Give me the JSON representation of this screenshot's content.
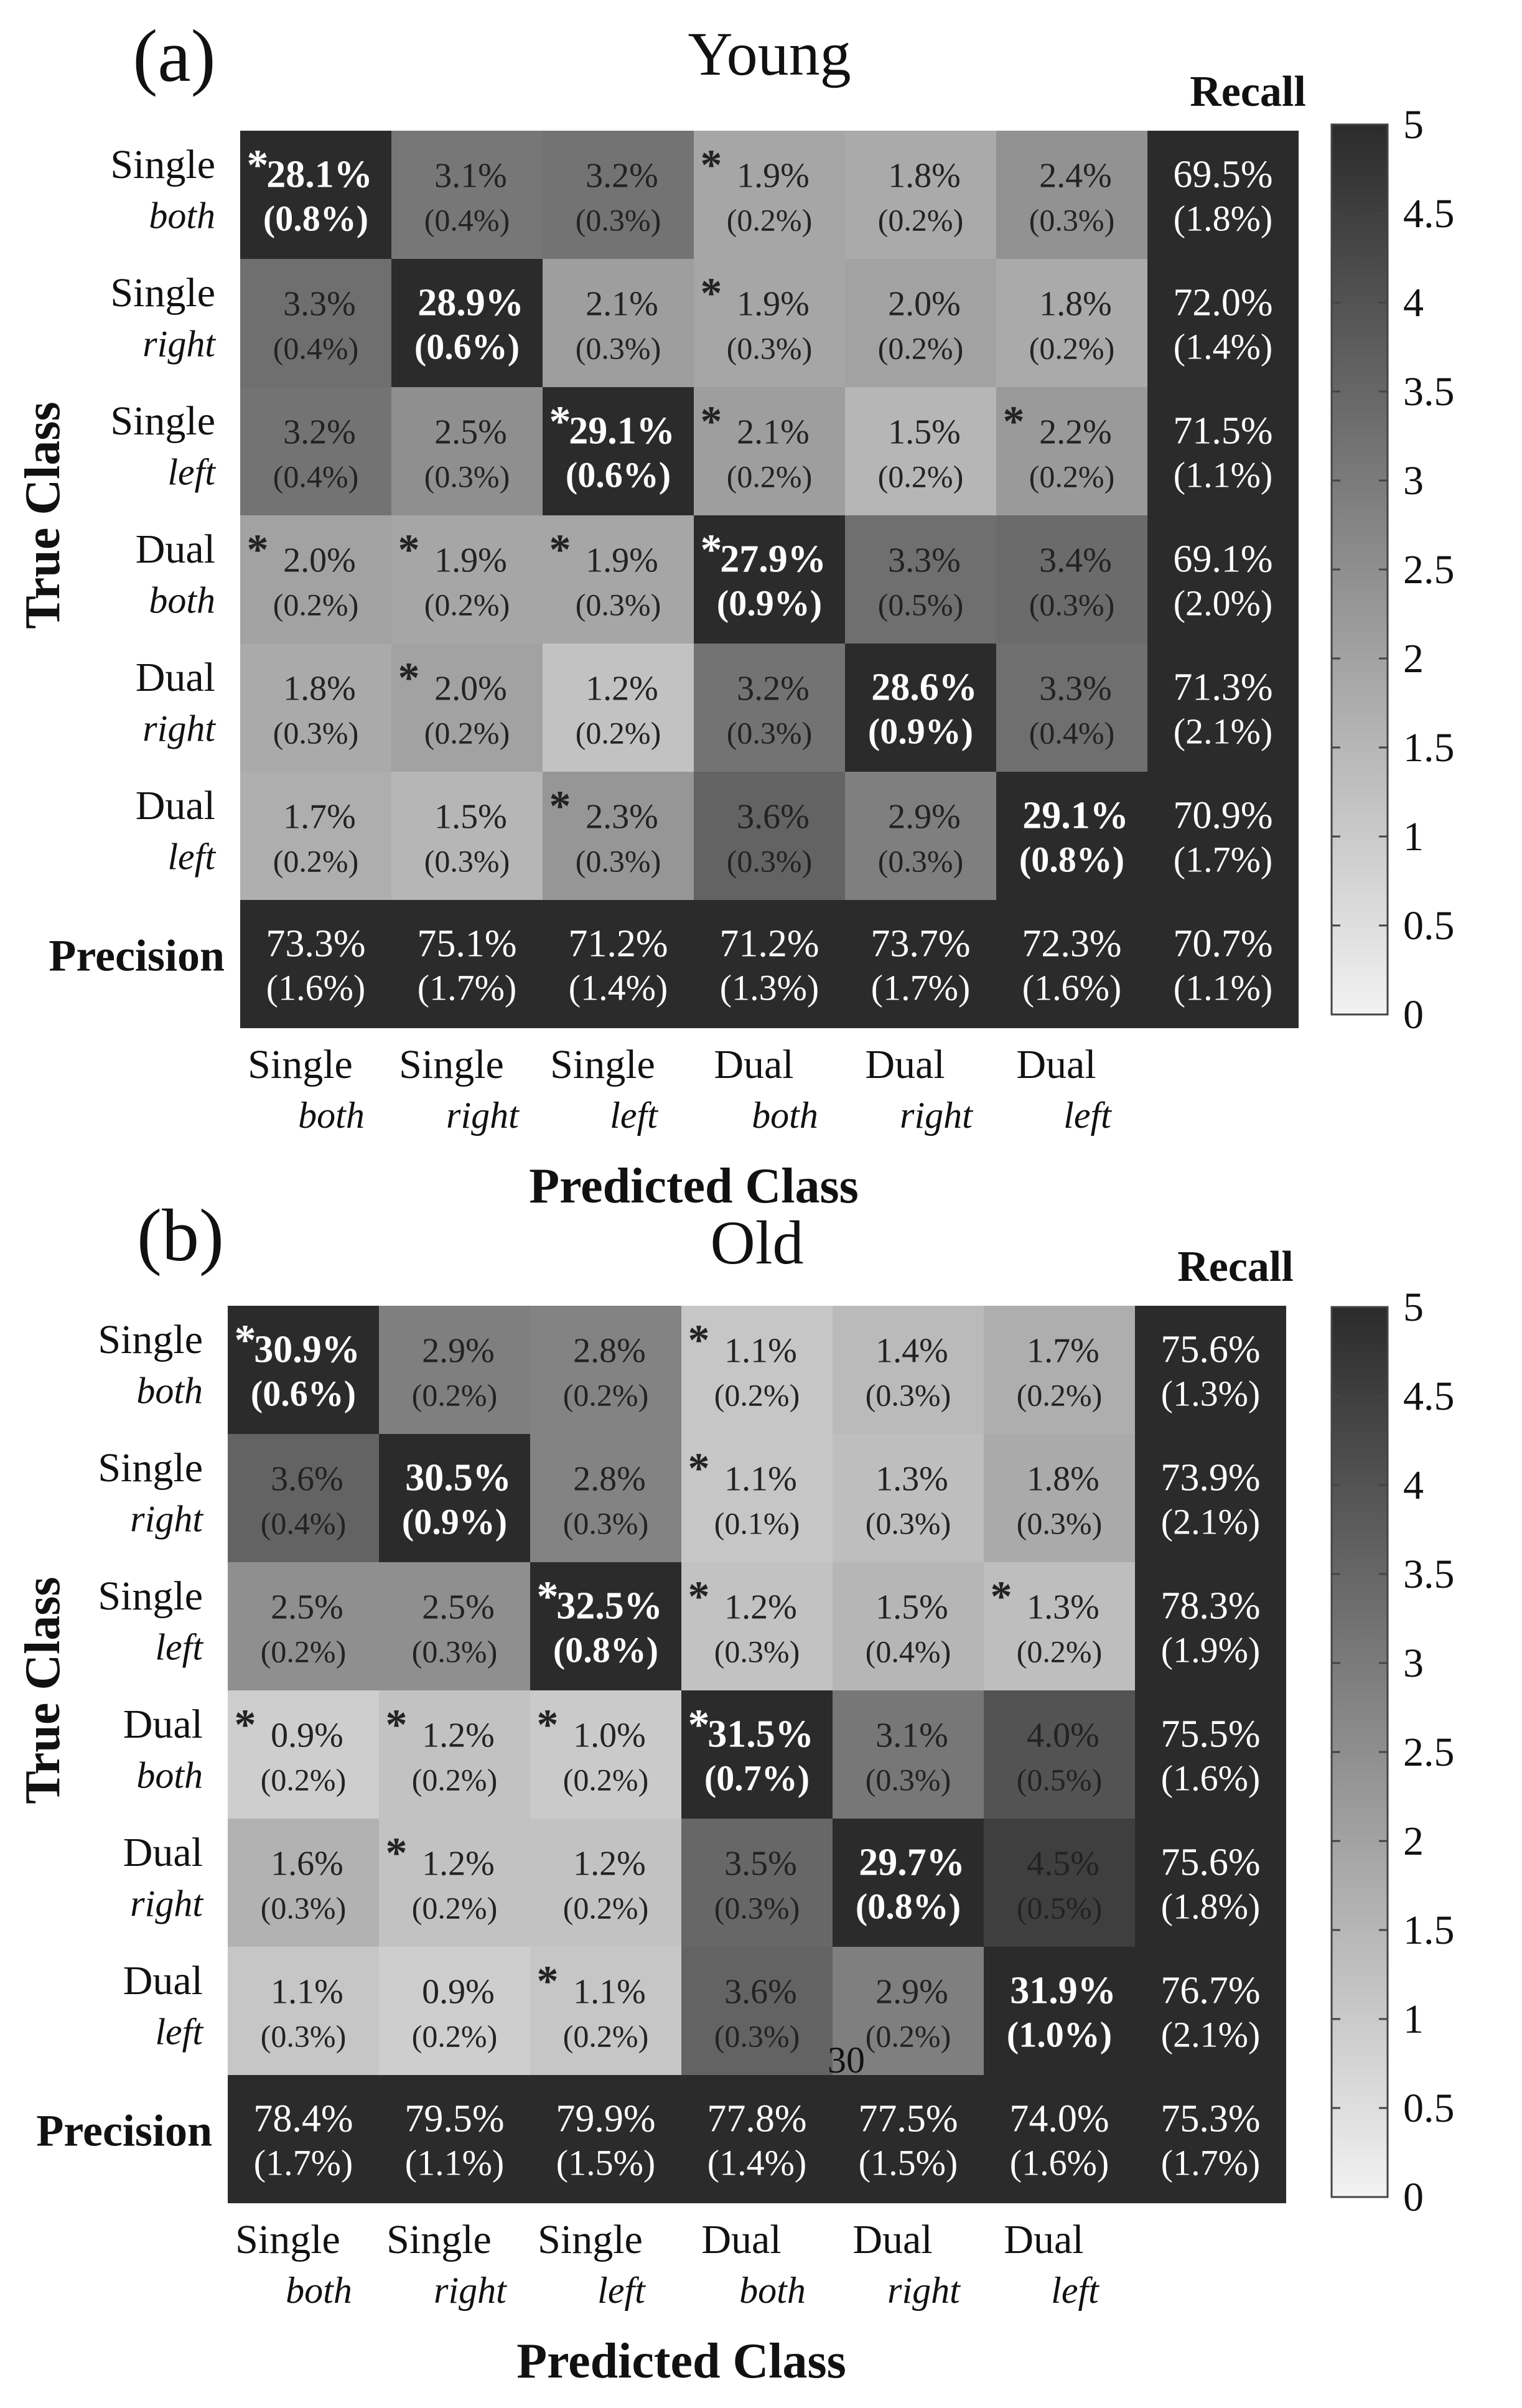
{
  "chart_data": [
    {
      "type": "heatmap",
      "panel": "(a)",
      "title": "Young",
      "xlabel": "Predicted Class",
      "ylabel": "True Class",
      "recall_label": "Recall",
      "precision_label": "Precision",
      "rows": [
        {
          "top": "Single",
          "bottom": "both"
        },
        {
          "top": "Single",
          "bottom": "right"
        },
        {
          "top": "Single",
          "bottom": "left"
        },
        {
          "top": "Dual",
          "bottom": "both"
        },
        {
          "top": "Dual",
          "bottom": "right"
        },
        {
          "top": "Dual",
          "bottom": "left"
        }
      ],
      "cols": [
        {
          "top": "Single",
          "bottom": "both"
        },
        {
          "top": "Single",
          "bottom": "right"
        },
        {
          "top": "Single",
          "bottom": "left"
        },
        {
          "top": "Dual",
          "bottom": "both"
        },
        {
          "top": "Dual",
          "bottom": "right"
        },
        {
          "top": "Dual",
          "bottom": "left"
        }
      ],
      "cells": [
        [
          [
            "28.1%",
            "(0.8%)",
            true
          ],
          [
            "3.1%",
            "(0.4%)",
            false
          ],
          [
            "3.2%",
            "(0.3%)",
            false
          ],
          [
            "1.9%",
            "(0.2%)",
            true
          ],
          [
            "1.8%",
            "(0.2%)",
            false
          ],
          [
            "2.4%",
            "(0.3%)",
            false
          ]
        ],
        [
          [
            "3.3%",
            "(0.4%)",
            false
          ],
          [
            "28.9%",
            "(0.6%)",
            false
          ],
          [
            "2.1%",
            "(0.3%)",
            false
          ],
          [
            "1.9%",
            "(0.3%)",
            true
          ],
          [
            "2.0%",
            "(0.2%)",
            false
          ],
          [
            "1.8%",
            "(0.2%)",
            false
          ]
        ],
        [
          [
            "3.2%",
            "(0.4%)",
            false
          ],
          [
            "2.5%",
            "(0.3%)",
            false
          ],
          [
            "29.1%",
            "(0.6%)",
            true
          ],
          [
            "2.1%",
            "(0.2%)",
            true
          ],
          [
            "1.5%",
            "(0.2%)",
            false
          ],
          [
            "2.2%",
            "(0.2%)",
            true
          ]
        ],
        [
          [
            "2.0%",
            "(0.2%)",
            true
          ],
          [
            "1.9%",
            "(0.2%)",
            true
          ],
          [
            "1.9%",
            "(0.3%)",
            true
          ],
          [
            "27.9%",
            "(0.9%)",
            true
          ],
          [
            "3.3%",
            "(0.5%)",
            false
          ],
          [
            "3.4%",
            "(0.3%)",
            false
          ]
        ],
        [
          [
            "1.8%",
            "(0.3%)",
            false
          ],
          [
            "2.0%",
            "(0.2%)",
            true
          ],
          [
            "1.2%",
            "(0.2%)",
            false
          ],
          [
            "3.2%",
            "(0.3%)",
            false
          ],
          [
            "28.6%",
            "(0.9%)",
            false
          ],
          [
            "3.3%",
            "(0.4%)",
            false
          ]
        ],
        [
          [
            "1.7%",
            "(0.2%)",
            false
          ],
          [
            "1.5%",
            "(0.3%)",
            false
          ],
          [
            "2.3%",
            "(0.3%)",
            true
          ],
          [
            "3.6%",
            "(0.3%)",
            false
          ],
          [
            "2.9%",
            "(0.3%)",
            false
          ],
          [
            "29.1%",
            "(0.8%)",
            false
          ]
        ]
      ],
      "recall": [
        [
          "69.5%",
          "(1.8%)"
        ],
        [
          "72.0%",
          "(1.4%)"
        ],
        [
          "71.5%",
          "(1.1%)"
        ],
        [
          "69.1%",
          "(2.0%)"
        ],
        [
          "71.3%",
          "(2.1%)"
        ],
        [
          "70.9%",
          "(1.7%)"
        ]
      ],
      "precision": [
        [
          "73.3%",
          "(1.6%)"
        ],
        [
          "75.1%",
          "(1.7%)"
        ],
        [
          "71.2%",
          "(1.4%)"
        ],
        [
          "71.2%",
          "(1.3%)"
        ],
        [
          "73.7%",
          "(1.7%)"
        ],
        [
          "72.3%",
          "(1.6%)"
        ]
      ],
      "overall": [
        "70.7%",
        "(1.1%)"
      ],
      "colorbar": {
        "min": 0,
        "max": 5,
        "ticks": [
          "0",
          "0.5",
          "1",
          "1.5",
          "2",
          "2.5",
          "3",
          "3.5",
          "4",
          "4.5",
          "5"
        ],
        "low_color": "#f2f2f2",
        "high_color": "#2b2b2b"
      }
    },
    {
      "type": "heatmap",
      "panel": "(b)",
      "title": "Old",
      "xlabel": "Predicted Class",
      "ylabel": "True Class",
      "recall_label": "Recall",
      "precision_label": "Precision",
      "rows": [
        {
          "top": "Single",
          "bottom": "both"
        },
        {
          "top": "Single",
          "bottom": "right"
        },
        {
          "top": "Single",
          "bottom": "left"
        },
        {
          "top": "Dual",
          "bottom": "both"
        },
        {
          "top": "Dual",
          "bottom": "right"
        },
        {
          "top": "Dual",
          "bottom": "left"
        }
      ],
      "cols": [
        {
          "top": "Single",
          "bottom": "both"
        },
        {
          "top": "Single",
          "bottom": "right"
        },
        {
          "top": "Single",
          "bottom": "left"
        },
        {
          "top": "Dual",
          "bottom": "both"
        },
        {
          "top": "Dual",
          "bottom": "right"
        },
        {
          "top": "Dual",
          "bottom": "left"
        }
      ],
      "cells": [
        [
          [
            "30.9%",
            "(0.6%)",
            true
          ],
          [
            "2.9%",
            "(0.2%)",
            false
          ],
          [
            "2.8%",
            "(0.2%)",
            false
          ],
          [
            "1.1%",
            "(0.2%)",
            true
          ],
          [
            "1.4%",
            "(0.3%)",
            false
          ],
          [
            "1.7%",
            "(0.2%)",
            false
          ]
        ],
        [
          [
            "3.6%",
            "(0.4%)",
            false
          ],
          [
            "30.5%",
            "(0.9%)",
            false
          ],
          [
            "2.8%",
            "(0.3%)",
            false
          ],
          [
            "1.1%",
            "(0.1%)",
            true
          ],
          [
            "1.3%",
            "(0.3%)",
            false
          ],
          [
            "1.8%",
            "(0.3%)",
            false
          ]
        ],
        [
          [
            "2.5%",
            "(0.2%)",
            false
          ],
          [
            "2.5%",
            "(0.3%)",
            false
          ],
          [
            "32.5%",
            "(0.8%)",
            true
          ],
          [
            "1.2%",
            "(0.3%)",
            true
          ],
          [
            "1.5%",
            "(0.4%)",
            false
          ],
          [
            "1.3%",
            "(0.2%)",
            true
          ]
        ],
        [
          [
            "0.9%",
            "(0.2%)",
            true
          ],
          [
            "1.2%",
            "(0.2%)",
            true
          ],
          [
            "1.0%",
            "(0.2%)",
            true
          ],
          [
            "31.5%",
            "(0.7%)",
            true
          ],
          [
            "3.1%",
            "(0.3%)",
            false
          ],
          [
            "4.0%",
            "(0.5%)",
            false
          ]
        ],
        [
          [
            "1.6%",
            "(0.3%)",
            false
          ],
          [
            "1.2%",
            "(0.2%)",
            true
          ],
          [
            "1.2%",
            "(0.2%)",
            false
          ],
          [
            "3.5%",
            "(0.3%)",
            false
          ],
          [
            "29.7%",
            "(0.8%)",
            false
          ],
          [
            "4.5%",
            "(0.5%)",
            false
          ]
        ],
        [
          [
            "1.1%",
            "(0.3%)",
            false
          ],
          [
            "0.9%",
            "(0.2%)",
            false
          ],
          [
            "1.1%",
            "(0.2%)",
            true
          ],
          [
            "3.6%",
            "(0.3%)",
            false
          ],
          [
            "2.9%",
            "(0.2%)",
            false
          ],
          [
            "31.9%",
            "(1.0%)",
            false
          ]
        ]
      ],
      "recall": [
        [
          "75.6%",
          "(1.3%)"
        ],
        [
          "73.9%",
          "(2.1%)"
        ],
        [
          "78.3%",
          "(1.9%)"
        ],
        [
          "75.5%",
          "(1.6%)"
        ],
        [
          "75.6%",
          "(1.8%)"
        ],
        [
          "76.7%",
          "(2.1%)"
        ]
      ],
      "precision": [
        [
          "78.4%",
          "(1.7%)"
        ],
        [
          "79.5%",
          "(1.1%)"
        ],
        [
          "79.9%",
          "(1.5%)"
        ],
        [
          "77.8%",
          "(1.4%)"
        ],
        [
          "77.5%",
          "(1.5%)"
        ],
        [
          "74.0%",
          "(1.6%)"
        ]
      ],
      "overall": [
        "75.3%",
        "(1.7%)"
      ],
      "colorbar": {
        "min": 0,
        "max": 5,
        "ticks": [
          "0",
          "0.5",
          "1",
          "1.5",
          "2",
          "2.5",
          "3",
          "3.5",
          "4",
          "4.5",
          "5"
        ],
        "low_color": "#f2f2f2",
        "high_color": "#2b2b2b"
      }
    }
  ],
  "page_number": "30"
}
